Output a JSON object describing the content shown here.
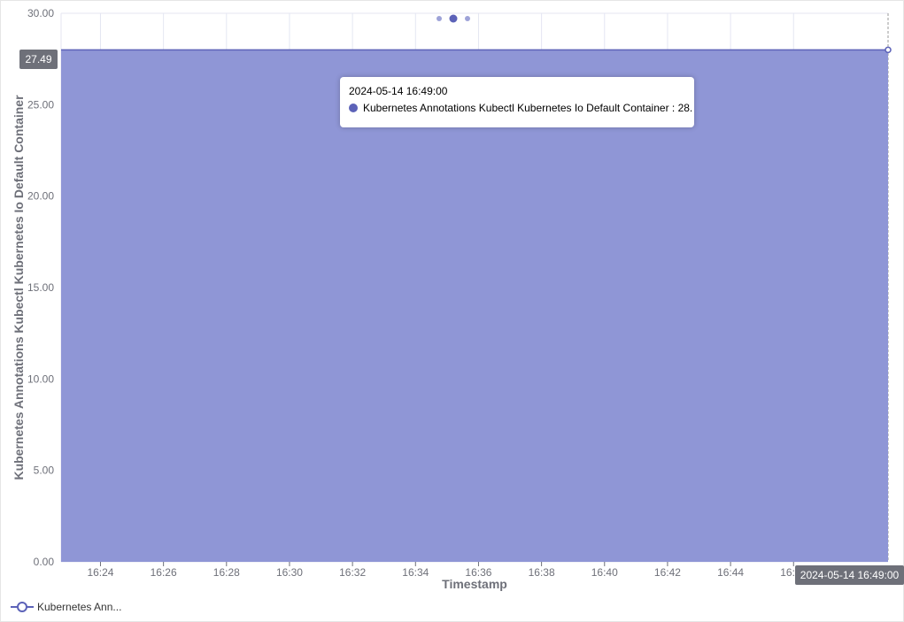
{
  "colors": {
    "series": "#5c62b8",
    "area": "#8f96d6",
    "grid": "#e4e6f2",
    "axis_text": "#6e7079",
    "pointer_label_bg": "#6e7079"
  },
  "chart_data": {
    "type": "area",
    "xlabel": "Timestamp",
    "ylabel": "Kubernetes Annotations Kubectl Kubernetes Io Default Container",
    "ylim": [
      0,
      30
    ],
    "y_ticks": [
      "0.00",
      "5.00",
      "10.00",
      "15.00",
      "20.00",
      "25.00",
      "30.00"
    ],
    "x_range": [
      "16:22:45",
      "16:49:00"
    ],
    "x_ticks": [
      "16:24",
      "16:26",
      "16:28",
      "16:30",
      "16:32",
      "16:34",
      "16:36",
      "16:38",
      "16:40",
      "16:42",
      "16:44",
      "16:46"
    ],
    "grid": true,
    "legend_position": "bottom-left",
    "series": [
      {
        "name": "Kubernetes Annotations Kubectl Kubernetes Io Default Container",
        "x": [
          "16:22:45",
          "16:49:00"
        ],
        "values": [
          28,
          28
        ]
      }
    ]
  },
  "axis_pointer": {
    "y_label": "27.49",
    "x_label": "2024-05-14 16:49:00"
  },
  "tooltip": {
    "time": "2024-05-14 16:49:00",
    "series_name": "Kubernetes Annotations Kubectl Kubernetes Io Default Container",
    "value": "28."
  },
  "legend": {
    "label": "Kubernetes Ann..."
  },
  "pager": {
    "count": 3,
    "active": 1
  }
}
